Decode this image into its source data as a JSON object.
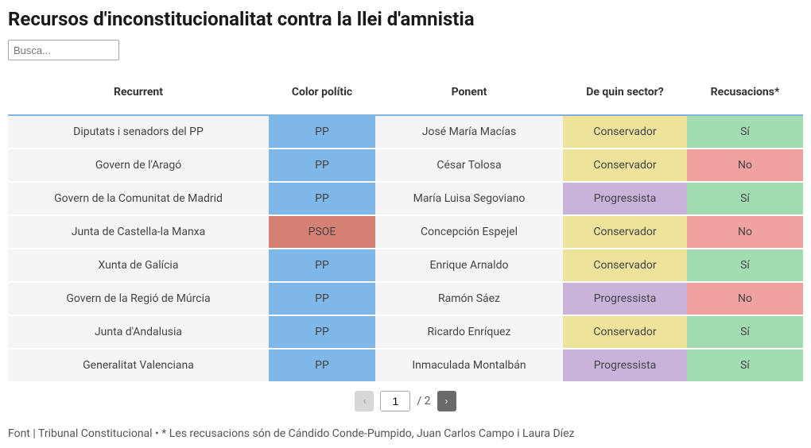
{
  "title": "Recursos d'inconstitucionalitat contra la llei d'amnistia",
  "search": {
    "placeholder": "Busca..."
  },
  "table": {
    "headers": {
      "recurrent": "Recurrent",
      "color_politic": "Color polític",
      "ponent": "Ponent",
      "sector": "De quin sector?",
      "recusacions": "Recusacions*"
    },
    "columns": {
      "recurrent_width": 328,
      "color_width": 134,
      "ponent_width": 236,
      "sector_width": 156,
      "recus_width": 146
    },
    "rows": [
      {
        "recurrent": "Diputats i senadors del PP",
        "color": "PP",
        "ponent": "José María Macías",
        "sector": "Conservador",
        "recusacions": "Sí"
      },
      {
        "recurrent": "Govern de l'Aragó",
        "color": "PP",
        "ponent": "César Tolosa",
        "sector": "Conservador",
        "recusacions": "No"
      },
      {
        "recurrent": "Govern de la Comunitat de Madrid",
        "color": "PP",
        "ponent": "María Luisa Segoviano",
        "sector": "Progressista",
        "recusacions": "Sí"
      },
      {
        "recurrent": "Junta de Castella-la Manxa",
        "color": "PSOE",
        "ponent": "Concepción Espejel",
        "sector": "Conservador",
        "recusacions": "No"
      },
      {
        "recurrent": "Xunta de Galícia",
        "color": "PP",
        "ponent": "Enrique Arnaldo",
        "sector": "Conservador",
        "recusacions": "Sí"
      },
      {
        "recurrent": "Govern de la Regió de Múrcia",
        "color": "PP",
        "ponent": "Ramón Sáez",
        "sector": "Progressista",
        "recusacions": "No"
      },
      {
        "recurrent": "Junta d'Andalusia",
        "color": "PP",
        "ponent": "Ricardo Enríquez",
        "sector": "Conservador",
        "recusacions": "Sí"
      },
      {
        "recurrent": "Generalitat Valenciana",
        "color": "PP",
        "ponent": "Inmaculada Montalbán",
        "sector": "Progressista",
        "recusacions": "Sí"
      }
    ]
  },
  "tag_colors": {
    "PP": "#7eb7e8",
    "PSOE": "#d58075",
    "Conservador": "#eee39b",
    "Progressista": "#c9b3db",
    "Sí": "#a3dbb3",
    "No": "#efa2a0"
  },
  "styling": {
    "background": "#ffffff",
    "row_bg": "#f5f5f5",
    "row_gap_color": "#ffffff",
    "header_underline": "#7fb3e0",
    "title_fontsize": 24,
    "header_fontsize": 14,
    "cell_fontsize": 14,
    "footnote_fontsize": 14
  },
  "pagination": {
    "prev_glyph": "‹",
    "next_glyph": "›",
    "current": "1",
    "separator_total": "/ 2",
    "prev_enabled": false,
    "next_enabled": true
  },
  "footnote": "Font | Tribunal Constitucional • * Les recusacions són de Cándido Conde-Pumpido, Juan Carlos Campo i Laura Díez"
}
